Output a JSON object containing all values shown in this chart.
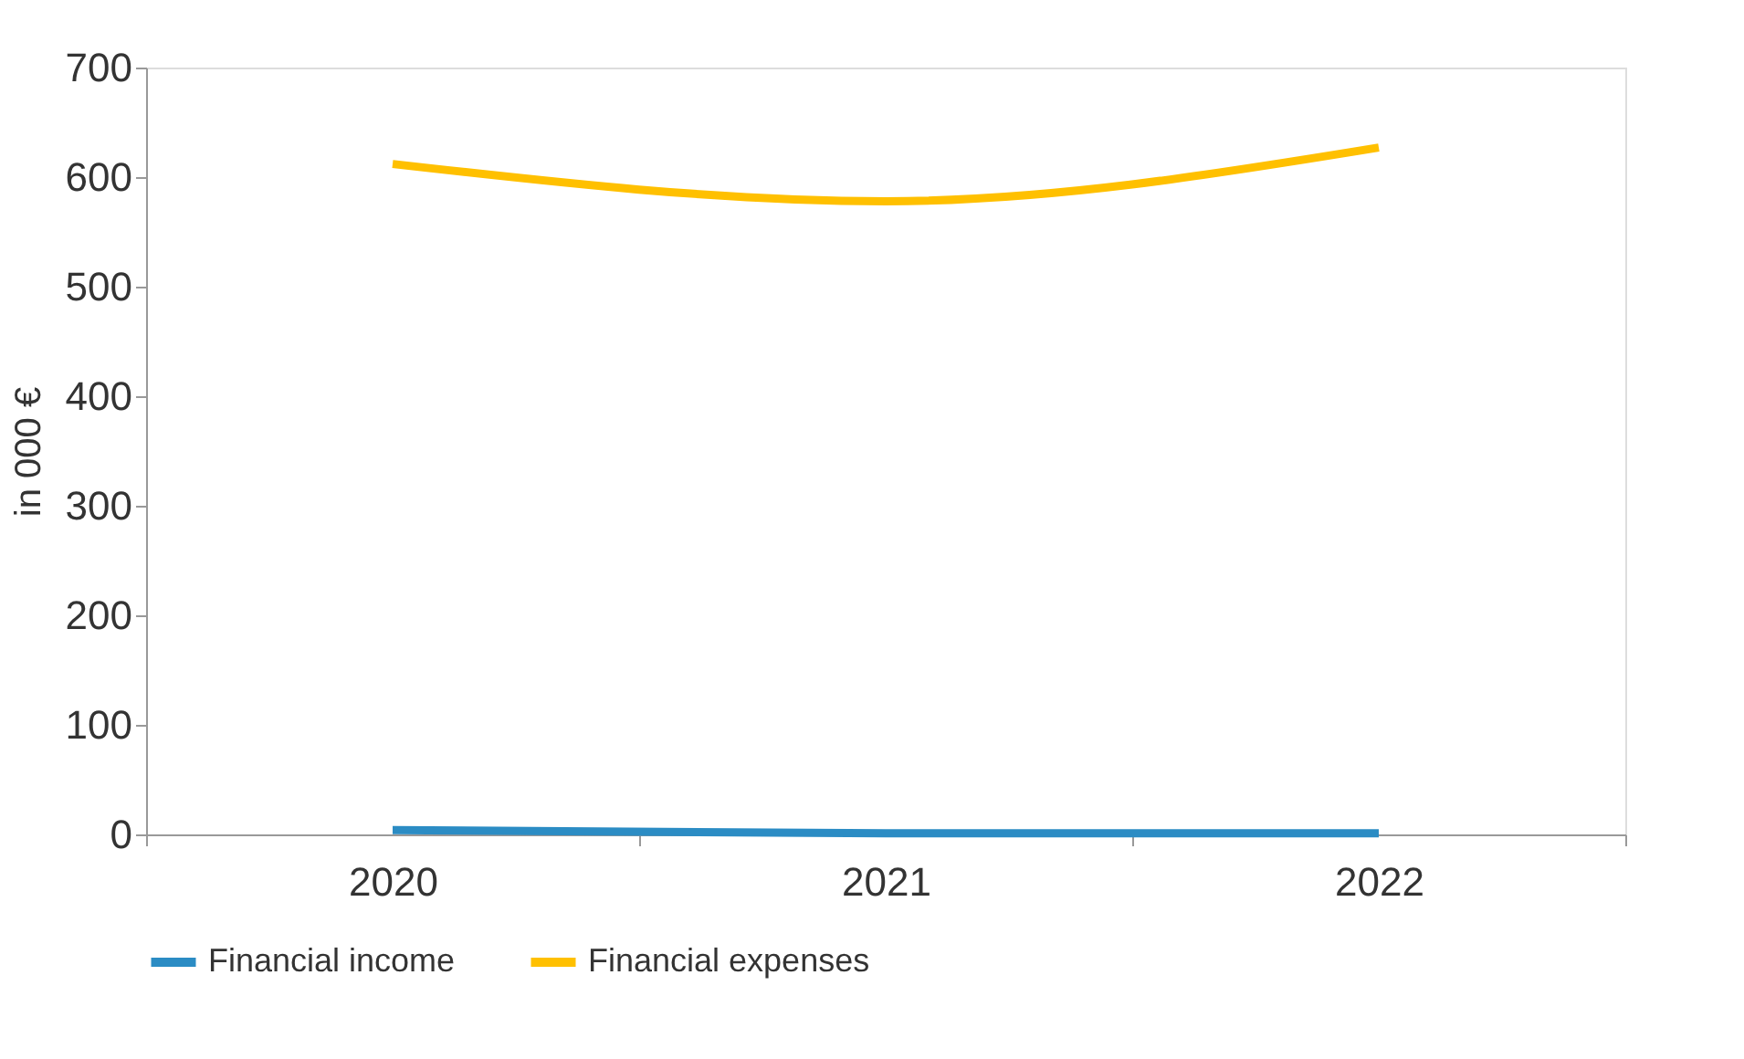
{
  "chart_data": {
    "type": "line",
    "ylabel": "in 000 €",
    "categories": [
      "2020",
      "2021",
      "2022"
    ],
    "series": [
      {
        "name": "Financial income",
        "color": "#2b8cc4",
        "values": [
          4,
          1,
          1
        ]
      },
      {
        "name": "Financial expenses",
        "color": "#ffc000",
        "values": [
          612,
          578,
          627
        ]
      }
    ],
    "ylim": [
      0,
      700
    ],
    "yticks": [
      0,
      100,
      200,
      300,
      400,
      500,
      600,
      700
    ],
    "grid": false,
    "legend": "bottom",
    "marker": "none",
    "line_style": "solid"
  }
}
